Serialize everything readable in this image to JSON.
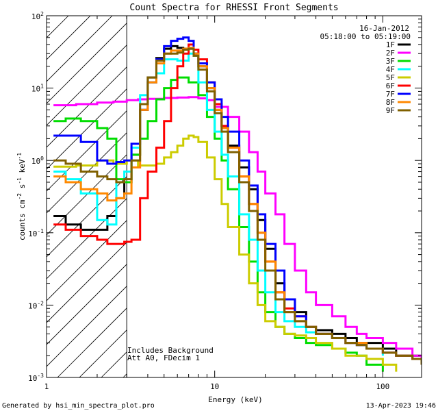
{
  "chart_data": {
    "type": "line",
    "title": "Count Spectra for RHESSI Front Segments",
    "xlabel": "Energy (keV)",
    "ylabel_parts": {
      "base": "counts cm",
      "exp1": "-2",
      "s": " s",
      "exp2": "-1",
      "kev": " keV",
      "exp3": "-1"
    },
    "x_scale": "log",
    "y_scale": "log",
    "xlim": [
      1,
      170
    ],
    "ylim": [
      0.001,
      100
    ],
    "x_ticks": [
      {
        "value": 1,
        "label": "1"
      },
      {
        "value": 10,
        "label": "10"
      },
      {
        "value": 100,
        "label": "100"
      }
    ],
    "y_ticks": [
      {
        "value": 0.001,
        "base": "10",
        "exp": "-3"
      },
      {
        "value": 0.01,
        "base": "10",
        "exp": "-2"
      },
      {
        "value": 0.1,
        "base": "10",
        "exp": "-1"
      },
      {
        "value": 1,
        "base": "10",
        "exp": "0"
      },
      {
        "value": 10,
        "base": "10",
        "exp": "1"
      },
      {
        "value": 100,
        "base": "10",
        "exp": "2"
      }
    ],
    "hatched_region_keV": [
      1,
      3
    ],
    "date": "16-Jan-2012",
    "time_range": "05:18:00 to 05:19:00",
    "annotations": [
      "Includes Background",
      "Att A0, FDecim 1"
    ],
    "series": [
      {
        "name": "1F",
        "color": "#000000",
        "x": [
          1.1,
          1.3,
          1.6,
          2.0,
          2.3,
          2.6,
          2.9,
          3.2,
          3.6,
          4.0,
          4.5,
          5.0,
          5.5,
          6.0,
          6.5,
          7.0,
          7.5,
          8.0,
          9.0,
          10,
          11,
          12,
          14,
          16,
          18,
          20,
          23,
          26,
          30,
          35,
          40,
          50,
          60,
          70,
          80,
          100,
          120,
          150,
          170
        ],
        "values": [
          0.17,
          0.13,
          0.11,
          0.11,
          0.17,
          0.3,
          0.5,
          1.2,
          5,
          14,
          26,
          35,
          38,
          36,
          35,
          35,
          30,
          20,
          10,
          5,
          3,
          1.6,
          0.8,
          0.4,
          0.15,
          0.06,
          0.02,
          0.012,
          0.008,
          0.005,
          0.0045,
          0.004,
          0.0035,
          0.003,
          0.003,
          0.0025,
          0.002,
          0.002,
          0.0015
        ]
      },
      {
        "name": "2F",
        "color": "#ff00ff",
        "x": [
          1.1,
          1.5,
          2.0,
          2.5,
          3.0,
          3.5,
          4.0,
          5.0,
          6.0,
          7.0,
          8.0,
          9.0,
          10,
          12,
          14,
          16,
          18,
          20,
          23,
          26,
          30,
          35,
          40,
          50,
          60,
          70,
          80,
          100,
          120,
          150,
          170
        ],
        "values": [
          5.8,
          6.0,
          6.3,
          6.5,
          6.8,
          7.0,
          7.1,
          7.3,
          7.4,
          7.5,
          7.2,
          6.8,
          5.5,
          4.0,
          2.5,
          1.3,
          0.7,
          0.35,
          0.18,
          0.07,
          0.03,
          0.015,
          0.01,
          0.007,
          0.005,
          0.004,
          0.0035,
          0.003,
          0.0025,
          0.002,
          0.0018
        ]
      },
      {
        "name": "3F",
        "color": "#00dd00",
        "x": [
          1.1,
          1.3,
          1.6,
          2.0,
          2.3,
          2.6,
          2.9,
          3.2,
          3.6,
          4.0,
          4.5,
          5.0,
          5.5,
          6.0,
          7.0,
          8.0,
          9.0,
          10,
          11,
          12,
          14,
          16,
          18,
          20,
          23,
          26,
          30,
          35,
          40,
          50,
          60,
          70,
          80,
          100
        ],
        "values": [
          3.5,
          3.8,
          3.5,
          2.8,
          2.0,
          0.55,
          0.5,
          1.2,
          2.0,
          3.5,
          7,
          10,
          13,
          14,
          12,
          8,
          4,
          2,
          1.0,
          0.4,
          0.12,
          0.04,
          0.015,
          0.008,
          0.005,
          0.004,
          0.0035,
          0.003,
          0.0028,
          0.0025,
          0.0022,
          0.002,
          0.0015,
          0.0012
        ]
      },
      {
        "name": "4F",
        "color": "#00ffff",
        "x": [
          1.1,
          1.3,
          1.6,
          2.0,
          2.3,
          2.6,
          2.9,
          3.2,
          3.6,
          4.0,
          4.5,
          5.0,
          5.5,
          6.0,
          7.0,
          7.5,
          8.0,
          9.0,
          10,
          11,
          12,
          14,
          16,
          18,
          20,
          23,
          26,
          30,
          35,
          40,
          50,
          60,
          70,
          80,
          100
        ],
        "values": [
          0.7,
          0.55,
          0.35,
          0.15,
          0.13,
          0.5,
          0.7,
          1.5,
          8,
          12,
          16,
          25,
          25,
          24,
          30,
          28,
          12,
          5,
          2.5,
          1.2,
          0.6,
          0.18,
          0.08,
          0.03,
          0.015,
          0.008,
          0.006,
          0.005,
          0.0042,
          0.004,
          0.0035,
          0.003,
          0.003,
          0.0025,
          0.002
        ]
      },
      {
        "name": "5F",
        "color": "#cccc00",
        "x": [
          1.1,
          1.5,
          2.0,
          2.5,
          3.0,
          3.5,
          4.0,
          4.5,
          5.0,
          5.5,
          6.0,
          6.5,
          7.0,
          7.5,
          8.0,
          9.0,
          10,
          11,
          12,
          14,
          16,
          18,
          20,
          23,
          26,
          30,
          35,
          40,
          50,
          60,
          70,
          80,
          100,
          120
        ],
        "values": [
          0.82,
          0.85,
          1.0,
          0.9,
          1.0,
          0.85,
          0.85,
          0.9,
          1.1,
          1.3,
          1.6,
          2.0,
          2.2,
          2.1,
          1.8,
          1.1,
          0.55,
          0.25,
          0.12,
          0.05,
          0.02,
          0.01,
          0.006,
          0.005,
          0.004,
          0.0038,
          0.0035,
          0.003,
          0.0025,
          0.002,
          0.002,
          0.0018,
          0.0015,
          0.0012
        ]
      },
      {
        "name": "6F",
        "color": "#ff0000",
        "x": [
          1.1,
          1.3,
          1.6,
          2.0,
          2.3,
          2.6,
          2.9,
          3.2,
          3.6,
          4.0,
          4.5,
          5.0,
          5.5,
          6.0,
          6.5,
          7.0,
          7.5,
          8.0,
          9.0,
          10,
          11,
          12,
          14,
          16,
          18,
          20,
          23,
          26,
          30,
          35,
          40,
          50,
          60,
          70,
          80,
          100,
          120,
          150,
          170
        ],
        "values": [
          0.13,
          0.11,
          0.09,
          0.08,
          0.07,
          0.07,
          0.075,
          0.08,
          0.3,
          0.7,
          1.5,
          3.5,
          10,
          20,
          30,
          40,
          34,
          25,
          12,
          6,
          3,
          1.5,
          0.6,
          0.25,
          0.1,
          0.04,
          0.015,
          0.009,
          0.007,
          0.005,
          0.004,
          0.0035,
          0.003,
          0.003,
          0.0025,
          0.0022,
          0.002,
          0.0018,
          0.0015
        ]
      },
      {
        "name": "7F",
        "color": "#0000ff",
        "x": [
          1.1,
          1.3,
          1.6,
          2.0,
          2.3,
          2.6,
          2.9,
          3.2,
          3.6,
          4.0,
          4.5,
          5.0,
          5.5,
          6.0,
          6.5,
          7.0,
          7.5,
          8.0,
          9.0,
          10,
          11,
          12,
          14,
          16,
          18,
          20,
          23,
          26,
          30,
          35,
          40,
          50,
          60,
          70,
          80,
          100,
          120,
          150,
          170
        ],
        "values": [
          2.2,
          2.2,
          1.8,
          1.0,
          0.9,
          0.95,
          1.0,
          1.7,
          5,
          12,
          25,
          38,
          45,
          48,
          50,
          45,
          30,
          22,
          12,
          7,
          4,
          2.5,
          1.0,
          0.45,
          0.18,
          0.07,
          0.03,
          0.012,
          0.007,
          0.005,
          0.004,
          0.0035,
          0.003,
          0.0028,
          0.0025,
          0.0022,
          0.002,
          0.0018,
          0.0015
        ]
      },
      {
        "name": "8F",
        "color": "#ff8800",
        "x": [
          1.1,
          1.3,
          1.6,
          2.0,
          2.3,
          2.6,
          2.9,
          3.2,
          3.6,
          4.0,
          4.5,
          5.0,
          5.5,
          6.0,
          6.5,
          7.0,
          7.5,
          8.0,
          9.0,
          10,
          11,
          12,
          14,
          16,
          18,
          20,
          23,
          26,
          30,
          35,
          40,
          50,
          60,
          70,
          80,
          100,
          120,
          150,
          170
        ],
        "values": [
          0.6,
          0.5,
          0.4,
          0.35,
          0.28,
          0.3,
          0.35,
          0.8,
          5,
          12,
          22,
          30,
          33,
          33,
          35,
          36,
          30,
          20,
          10,
          5,
          2.8,
          1.5,
          0.6,
          0.25,
          0.1,
          0.04,
          0.015,
          0.008,
          0.006,
          0.005,
          0.004,
          0.0035,
          0.003,
          0.003,
          0.0025,
          0.0022,
          0.002,
          0.0018,
          0.0015
        ]
      },
      {
        "name": "9F",
        "color": "#806000",
        "x": [
          1.1,
          1.3,
          1.6,
          2.0,
          2.3,
          2.6,
          2.9,
          3.2,
          3.6,
          4.0,
          4.5,
          5.0,
          5.5,
          6.0,
          6.5,
          7.0,
          7.5,
          8.0,
          9.0,
          10,
          11,
          12,
          14,
          16,
          18,
          20,
          23,
          26,
          30,
          35,
          40,
          50,
          60,
          70,
          80,
          100,
          120,
          150,
          170
        ],
        "values": [
          1.0,
          0.9,
          0.7,
          0.6,
          0.55,
          0.5,
          0.55,
          1.0,
          6,
          14,
          24,
          30,
          30,
          31,
          34,
          35,
          28,
          18,
          9,
          4.5,
          2.5,
          1.3,
          0.5,
          0.2,
          0.08,
          0.03,
          0.012,
          0.008,
          0.006,
          0.005,
          0.004,
          0.0035,
          0.003,
          0.0028,
          0.0025,
          0.0022,
          0.002,
          0.0018,
          0.0015
        ]
      }
    ]
  },
  "footer": {
    "generated_by": "Generated by hsi_min_spectra_plot.pro",
    "timestamp": "13-Apr-2023 19:46"
  }
}
